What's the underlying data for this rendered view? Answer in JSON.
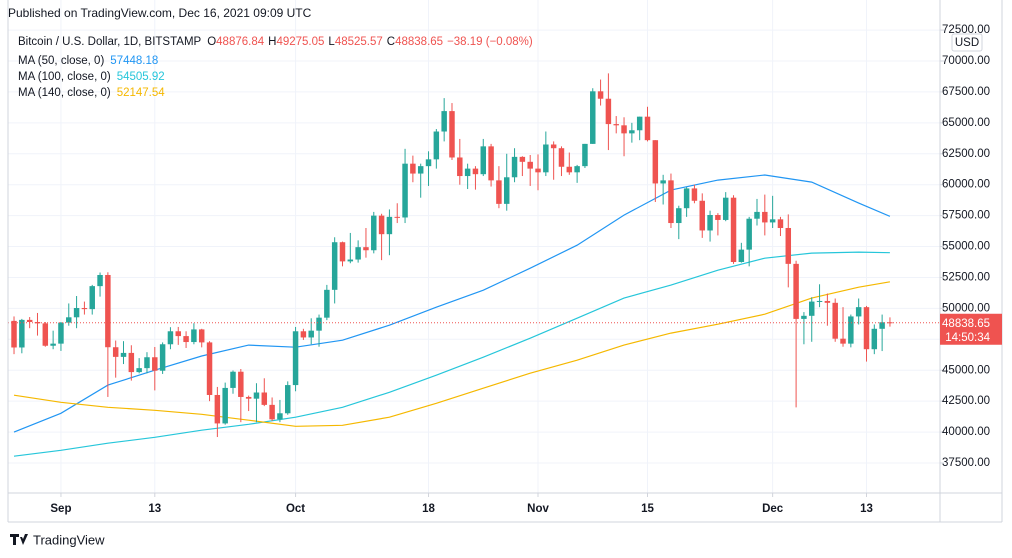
{
  "published": "Published on TradingView.com, Dec 16, 2021 09:09 UTC",
  "footer": "TradingView",
  "chart_data": {
    "type": "candlestick",
    "title": "Bitcoin / U.S. Dollar, 1D, BITSTAMP",
    "ohlc_labels": [
      "O",
      "H",
      "L",
      "C"
    ],
    "change": "−38.19 (−0.08%)",
    "currency": "USD",
    "countdown": "14:50:34",
    "up_color": "#26a69a",
    "down_color": "#ef5350",
    "grid": true,
    "xlim": [
      -0.77,
      118.4
    ],
    "xticks": [
      {
        "value": 6,
        "label": "Sep"
      },
      {
        "value": 18,
        "label": "13"
      },
      {
        "value": 36,
        "label": "Oct"
      },
      {
        "value": 53,
        "label": "18"
      },
      {
        "value": 67,
        "label": "Nov"
      },
      {
        "value": 81,
        "label": "15"
      },
      {
        "value": 97,
        "label": "Dec"
      },
      {
        "value": 109,
        "label": "13"
      }
    ],
    "ylim": [
      35075,
      74932
    ],
    "yticks": [
      {
        "value": 37500,
        "label": "37500.00"
      },
      {
        "value": 40000,
        "label": "40000.00"
      },
      {
        "value": 42500,
        "label": "42500.00"
      },
      {
        "value": 45000,
        "label": "45000.00"
      },
      {
        "value": 47500,
        "label": "47500.00"
      },
      {
        "value": 50000,
        "label": "50000.00"
      },
      {
        "value": 52500,
        "label": "52500.00"
      },
      {
        "value": 55000,
        "label": "55000.00"
      },
      {
        "value": 57500,
        "label": "57500.00"
      },
      {
        "value": 60000,
        "label": "60000.00"
      },
      {
        "value": 62500,
        "label": "62500.00"
      },
      {
        "value": 65000,
        "label": "65000.00"
      },
      {
        "value": 67500,
        "label": "67500.00"
      },
      {
        "value": 70000,
        "label": "70000.00"
      },
      {
        "value": 72500,
        "label": "72500.00"
      }
    ],
    "open": [
      48990,
      46840,
      49070,
      48900,
      48790,
      46980,
      47150,
      48850,
      49280,
      50030,
      49940,
      51800,
      52700,
      46860,
      46080,
      46400,
      44850,
      45170,
      46050,
      44960,
      47100,
      48150,
      47760,
      47280,
      48300,
      47250,
      43000,
      40700,
      43570,
      44880,
      42840,
      42700,
      43200,
      42200,
      41030,
      41520,
      43800,
      48150,
      47650,
      48200,
      49250,
      51500,
      55350,
      53800,
      53950,
      54950,
      54700,
      57500,
      56000,
      57400,
      57350,
      61700,
      60900,
      61500,
      62050,
      64300,
      65950,
      62200,
      60700,
      61300,
      60850,
      63100,
      60350,
      58450,
      60600,
      62250,
      61850,
      61300,
      61000,
      63250,
      62950,
      61450,
      61000,
      61500,
      63300,
      67550,
      66950,
      64900,
      64800,
      64150,
      64400,
      65500,
      63600,
      60100,
      60350,
      56900,
      58100,
      59700,
      58700,
      56300,
      57550,
      57150,
      58950,
      53750,
      54750,
      57250,
      57800,
      56950,
      57200,
      56500,
      53600,
      49150,
      49400,
      50550,
      50600,
      50450,
      47550,
      47150,
      49350,
      50100,
      46700,
      48350,
      48876.84
    ],
    "high": [
      49350,
      49150,
      49300,
      49630,
      48900,
      48200,
      48900,
      50400,
      51000,
      50550,
      51900,
      52900,
      52920,
      47400,
      47350,
      47020,
      45980,
      46460,
      46880,
      47250,
      48480,
      48500,
      48150,
      48800,
      48350,
      47350,
      43650,
      44000,
      44980,
      45100,
      42950,
      43950,
      44350,
      42800,
      42600,
      44100,
      48500,
      48350,
      49200,
      49500,
      51900,
      55750,
      55400,
      56100,
      55500,
      56500,
      57800,
      57650,
      58000,
      58500,
      62900,
      62350,
      61700,
      62700,
      64500,
      67000,
      66600,
      63700,
      61700,
      61500,
      63700,
      63300,
      61500,
      62500,
      62950,
      62300,
      62400,
      62450,
      64300,
      63500,
      63100,
      62600,
      61600,
      63300,
      67800,
      68500,
      69000,
      65550,
      65450,
      65000,
      65500,
      66300,
      63600,
      60800,
      60900,
      58300,
      59800,
      60000,
      59300,
      57900,
      57700,
      59400,
      59150,
      55300,
      57400,
      58850,
      59200,
      59100,
      57400,
      57600,
      53850,
      49700,
      50900,
      51950,
      51200,
      50800,
      50100,
      49500,
      50800,
      50200,
      48700,
      49500,
      49275.05
    ],
    "low": [
      46300,
      46370,
      48400,
      47800,
      46900,
      46700,
      46560,
      48600,
      48400,
      49500,
      49500,
      50950,
      42840,
      44400,
      45500,
      44160,
      44750,
      44750,
      43370,
      44700,
      46700,
      47050,
      46800,
      47100,
      46850,
      42500,
      39600,
      40600,
      43100,
      40800,
      41700,
      40800,
      42100,
      40900,
      40800,
      41400,
      43300,
      47450,
      47100,
      46900,
      49050,
      50400,
      53400,
      53650,
      53700,
      54100,
      54450,
      53900,
      54300,
      56900,
      56900,
      60200,
      58950,
      59900,
      61300,
      63500,
      62000,
      60000,
      59650,
      59600,
      60700,
      59850,
      58100,
      57900,
      60200,
      60700,
      59900,
      59550,
      60700,
      60400,
      60700,
      60800,
      60150,
      61350,
      63300,
      66400,
      62800,
      64150,
      62300,
      63400,
      63600,
      63500,
      58600,
      58400,
      56500,
      55600,
      57400,
      58500,
      55700,
      55400,
      55900,
      57050,
      53600,
      53700,
      53400,
      56700,
      55900,
      56500,
      55850,
      51700,
      42000,
      47100,
      47300,
      50100,
      48600,
      47300,
      46900,
      46850,
      48700,
      45700,
      46300,
      46550,
      48525.57
    ],
    "close": [
      46840,
      49070,
      48900,
      48790,
      46980,
      47150,
      48850,
      49280,
      50030,
      49940,
      51800,
      52700,
      46860,
      46080,
      46400,
      44850,
      45170,
      46050,
      44960,
      47100,
      48150,
      47760,
      47280,
      48300,
      47250,
      43000,
      40700,
      43570,
      44880,
      42840,
      42700,
      43200,
      42200,
      41030,
      41520,
      43800,
      48150,
      47650,
      48200,
      49250,
      51500,
      55350,
      53800,
      53950,
      54950,
      54700,
      57500,
      56000,
      57400,
      57350,
      61700,
      60900,
      61500,
      62050,
      64300,
      65950,
      62200,
      60700,
      61300,
      60850,
      63100,
      60350,
      58450,
      60600,
      62250,
      61850,
      61300,
      61000,
      63250,
      62950,
      61450,
      61000,
      61500,
      63300,
      67550,
      66950,
      64900,
      64800,
      64150,
      64400,
      65500,
      63600,
      60100,
      60350,
      56900,
      58100,
      59700,
      58700,
      56300,
      57550,
      57150,
      58950,
      53750,
      54750,
      57250,
      57800,
      56950,
      57200,
      56500,
      53600,
      49150,
      49400,
      50550,
      50600,
      50450,
      47550,
      47150,
      49350,
      50100,
      46700,
      48350,
      48876.84,
      48838.65
    ],
    "series": [
      {
        "name": "MA (50, close, 0)",
        "color": "#2196f3",
        "x": [
          0,
          6,
          12,
          18,
          24,
          30,
          36,
          42,
          48,
          54,
          60,
          66,
          72,
          78,
          84,
          90,
          96,
          102,
          108,
          112
        ],
        "values": [
          40000,
          41520,
          43800,
          45000,
          46150,
          47030,
          46860,
          47430,
          48640,
          50100,
          51470,
          53250,
          55110,
          57540,
          59560,
          60370,
          60780,
          60210,
          58510,
          57448.18
        ]
      },
      {
        "name": "MA (100, close, 0)",
        "color": "#26c6da",
        "x": [
          0,
          6,
          12,
          18,
          24,
          30,
          36,
          42,
          48,
          54,
          60,
          66,
          72,
          78,
          84,
          90,
          96,
          102,
          108,
          112
        ],
        "values": [
          38050,
          38530,
          39100,
          39580,
          40150,
          40630,
          41200,
          42000,
          43220,
          44600,
          46050,
          47590,
          49210,
          50830,
          51880,
          53090,
          54060,
          54470,
          54550,
          54505.92
        ]
      },
      {
        "name": "MA (140, close, 0)",
        "color": "#f5b800",
        "x": [
          0,
          6,
          12,
          18,
          24,
          30,
          36,
          42,
          48,
          54,
          60,
          66,
          72,
          78,
          84,
          90,
          96,
          102,
          108,
          112
        ],
        "values": [
          42980,
          42410,
          42000,
          41760,
          41440,
          40960,
          40470,
          40550,
          41200,
          42330,
          43550,
          44760,
          45810,
          47030,
          48000,
          48720,
          49530,
          50830,
          51710,
          52147.54
        ]
      }
    ]
  }
}
